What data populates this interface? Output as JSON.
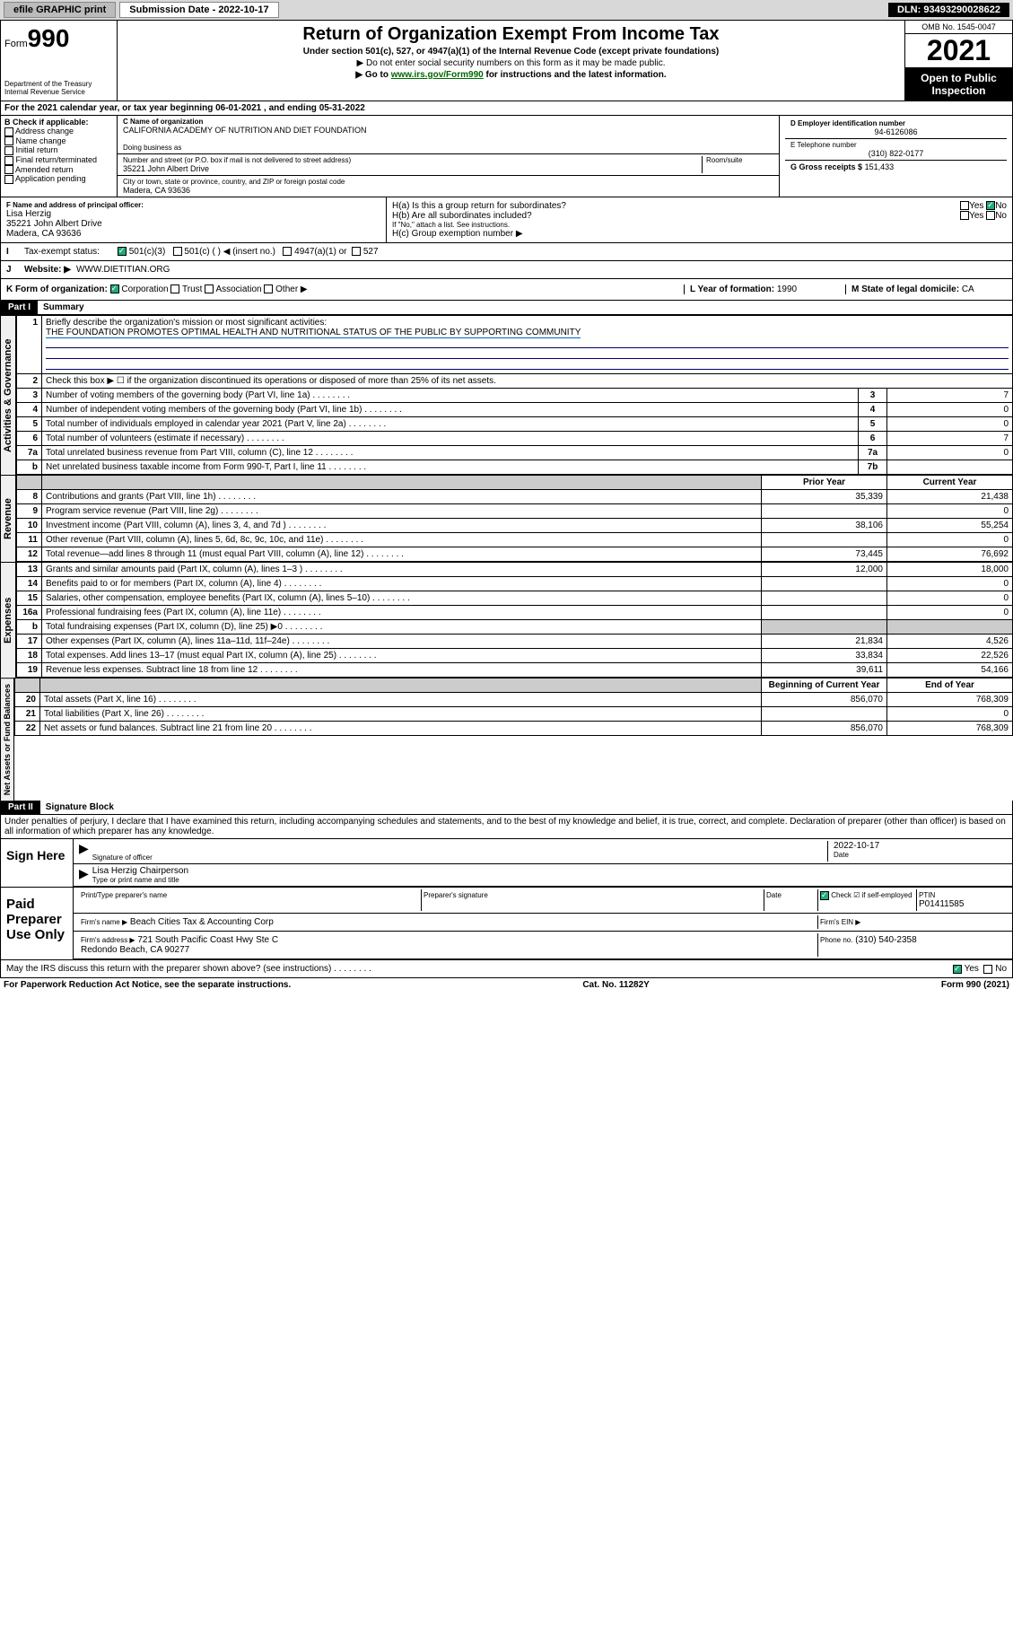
{
  "topbar": {
    "efile": "efile GRAPHIC print",
    "sub_label": "Submission Date - 2022-10-17",
    "dln": "DLN: 93493290028622"
  },
  "header": {
    "form_word": "Form",
    "form_num": "990",
    "dept": "Department of the Treasury\nInternal Revenue Service",
    "title": "Return of Organization Exempt From Income Tax",
    "subtitle": "Under section 501(c), 527, or 4947(a)(1) of the Internal Revenue Code (except private foundations)",
    "note1": "▶ Do not enter social security numbers on this form as it may be made public.",
    "note2_pre": "▶ Go to ",
    "note2_link": "www.irs.gov/Form990",
    "note2_post": " for instructions and the latest information.",
    "omb": "OMB No. 1545-0047",
    "year": "2021",
    "open": "Open to Public Inspection"
  },
  "sectionA": {
    "line_a": "For the 2021 calendar year, or tax year beginning 06-01-2021   , and ending 05-31-2022",
    "b_label": "B Check if applicable:",
    "b_items": [
      "Address change",
      "Name change",
      "Initial return",
      "Final return/terminated",
      "Amended return",
      "Application pending"
    ],
    "c_label": "C Name of organization",
    "org_name": "CALIFORNIA ACADEMY OF NUTRITION AND DIET FOUNDATION",
    "dba_label": "Doing business as",
    "addr_label": "Number and street (or P.O. box if mail is not delivered to street address)",
    "room_label": "Room/suite",
    "addr": "35221 John Albert Drive",
    "city_label": "City or town, state or province, country, and ZIP or foreign postal code",
    "city": "Madera, CA  93636",
    "d_label": "D Employer identification number",
    "ein": "94-6126086",
    "e_label": "E Telephone number",
    "phone": "(310) 822-0177",
    "g_label": "G Gross receipts $",
    "gross": "151,433",
    "f_label": "F Name and address of principal officer:",
    "officer": "Lisa Herzig\n35221 John Albert Drive\nMadera, CA  93636",
    "ha": "H(a)  Is this a group return for subordinates?",
    "hb": "H(b)  Are all subordinates included?",
    "hb_note": "If \"No,\" attach a list. See instructions.",
    "hc": "H(c)  Group exemption number ▶",
    "tax_exempt": "Tax-exempt status:",
    "te_501c3": "501(c)(3)",
    "te_501c": "501(c) (   ) ◀ (insert no.)",
    "te_4947": "4947(a)(1) or",
    "te_527": "527",
    "website_label": "Website: ▶",
    "website": "WWW.DIETITIAN.ORG",
    "k_label": "K Form of organization:",
    "k_items": [
      "Corporation",
      "Trust",
      "Association",
      "Other ▶"
    ],
    "l_label": "L Year of formation:",
    "l_val": "1990",
    "m_label": "M State of legal domicile:",
    "m_val": "CA"
  },
  "part1": {
    "title": "Part I",
    "subtitle": "Summary",
    "q1": "Briefly describe the organization's mission or most significant activities:",
    "mission": "THE FOUNDATION PROMOTES OPTIMAL HEALTH AND NUTRITIONAL STATUS OF THE PUBLIC BY SUPPORTING COMMUNITY",
    "q2": "Check this box ▶ ☐  if the organization discontinued its operations or disposed of more than 25% of its net assets.",
    "governance_rows": [
      {
        "n": "3",
        "desc": "Number of voting members of the governing body (Part VI, line 1a)",
        "box": "3",
        "val": "7"
      },
      {
        "n": "4",
        "desc": "Number of independent voting members of the governing body (Part VI, line 1b)",
        "box": "4",
        "val": "0"
      },
      {
        "n": "5",
        "desc": "Total number of individuals employed in calendar year 2021 (Part V, line 2a)",
        "box": "5",
        "val": "0"
      },
      {
        "n": "6",
        "desc": "Total number of volunteers (estimate if necessary)",
        "box": "6",
        "val": "7"
      },
      {
        "n": "7a",
        "desc": "Total unrelated business revenue from Part VIII, column (C), line 12",
        "box": "7a",
        "val": "0"
      },
      {
        "n": "b",
        "desc": "Net unrelated business taxable income from Form 990-T, Part I, line 11",
        "box": "7b",
        "val": ""
      }
    ],
    "col_prior": "Prior Year",
    "col_current": "Current Year",
    "revenue_rows": [
      {
        "n": "8",
        "desc": "Contributions and grants (Part VIII, line 1h)",
        "prior": "35,339",
        "curr": "21,438"
      },
      {
        "n": "9",
        "desc": "Program service revenue (Part VIII, line 2g)",
        "prior": "",
        "curr": "0"
      },
      {
        "n": "10",
        "desc": "Investment income (Part VIII, column (A), lines 3, 4, and 7d )",
        "prior": "38,106",
        "curr": "55,254"
      },
      {
        "n": "11",
        "desc": "Other revenue (Part VIII, column (A), lines 5, 6d, 8c, 9c, 10c, and 11e)",
        "prior": "",
        "curr": "0"
      },
      {
        "n": "12",
        "desc": "Total revenue—add lines 8 through 11 (must equal Part VIII, column (A), line 12)",
        "prior": "73,445",
        "curr": "76,692"
      }
    ],
    "expense_rows": [
      {
        "n": "13",
        "desc": "Grants and similar amounts paid (Part IX, column (A), lines 1–3 )",
        "prior": "12,000",
        "curr": "18,000"
      },
      {
        "n": "14",
        "desc": "Benefits paid to or for members (Part IX, column (A), line 4)",
        "prior": "",
        "curr": "0"
      },
      {
        "n": "15",
        "desc": "Salaries, other compensation, employee benefits (Part IX, column (A), lines 5–10)",
        "prior": "",
        "curr": "0"
      },
      {
        "n": "16a",
        "desc": "Professional fundraising fees (Part IX, column (A), line 11e)",
        "prior": "",
        "curr": "0"
      },
      {
        "n": "b",
        "desc": "Total fundraising expenses (Part IX, column (D), line 25) ▶0",
        "prior": "SHADED",
        "curr": "SHADED"
      },
      {
        "n": "17",
        "desc": "Other expenses (Part IX, column (A), lines 11a–11d, 11f–24e)",
        "prior": "21,834",
        "curr": "4,526"
      },
      {
        "n": "18",
        "desc": "Total expenses. Add lines 13–17 (must equal Part IX, column (A), line 25)",
        "prior": "33,834",
        "curr": "22,526"
      },
      {
        "n": "19",
        "desc": "Revenue less expenses. Subtract line 18 from line 12",
        "prior": "39,611",
        "curr": "54,166"
      }
    ],
    "col_begin": "Beginning of Current Year",
    "col_end": "End of Year",
    "assets_rows": [
      {
        "n": "20",
        "desc": "Total assets (Part X, line 16)",
        "prior": "856,070",
        "curr": "768,309"
      },
      {
        "n": "21",
        "desc": "Total liabilities (Part X, line 26)",
        "prior": "",
        "curr": "0"
      },
      {
        "n": "22",
        "desc": "Net assets or fund balances. Subtract line 21 from line 20",
        "prior": "856,070",
        "curr": "768,309"
      }
    ],
    "vert_gov": "Activities & Governance",
    "vert_rev": "Revenue",
    "vert_exp": "Expenses",
    "vert_net": "Net Assets or Fund Balances"
  },
  "part2": {
    "title": "Part II",
    "subtitle": "Signature Block",
    "declaration": "Under penalties of perjury, I declare that I have examined this return, including accompanying schedules and statements, and to the best of my knowledge and belief, it is true, correct, and complete. Declaration of preparer (other than officer) is based on all information of which preparer has any knowledge.",
    "sign_here": "Sign Here",
    "sig_officer": "Signature of officer",
    "sig_date": "2022-10-17",
    "date_label": "Date",
    "officer_name": "Lisa Herzig Chairperson",
    "type_name": "Type or print name and title",
    "paid_prep": "Paid Preparer Use Only",
    "prep_name_label": "Print/Type preparer's name",
    "prep_sig_label": "Preparer's signature",
    "prep_date_label": "Date",
    "check_self": "Check ☑ if self-employed",
    "ptin_label": "PTIN",
    "ptin": "P01411585",
    "firm_name_label": "Firm's name   ▶",
    "firm_name": "Beach Cities Tax & Accounting Corp",
    "firm_ein_label": "Firm's EIN ▶",
    "firm_addr_label": "Firm's address ▶",
    "firm_addr": "721 South Pacific Coast Hwy Ste C\nRedondo Beach, CA  90277",
    "firm_phone_label": "Phone no.",
    "firm_phone": "(310) 540-2358",
    "may_irs": "May the IRS discuss this return with the preparer shown above? (see instructions)"
  },
  "footer": {
    "paperwork": "For Paperwork Reduction Act Notice, see the separate instructions.",
    "cat": "Cat. No. 11282Y",
    "form": "Form 990 (2021)"
  }
}
